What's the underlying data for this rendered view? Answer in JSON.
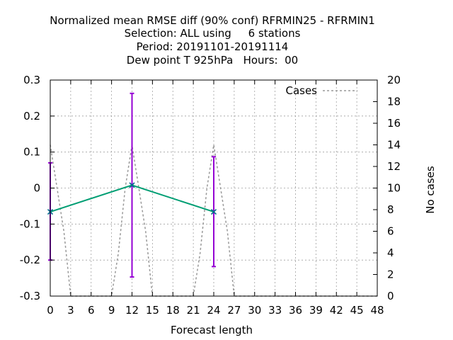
{
  "chart_data": {
    "type": "line",
    "title_lines": [
      "Normalized mean RMSE diff (90% conf) RFRMIN25 - RFRMIN1",
      "Selection: ALL using     6 stations",
      "Period: 20191101-20191114",
      "Dew point T 925hPa   Hours:  00"
    ],
    "xlabel": "Forecast length",
    "ylabel": "",
    "y2label": "No cases",
    "xlim": [
      0,
      48
    ],
    "ylim": [
      -0.3,
      0.3
    ],
    "y2lim": [
      0,
      20
    ],
    "x_ticks": [
      "0",
      "3",
      "6",
      "9",
      "12",
      "15",
      "18",
      "21",
      "24",
      "27",
      "30",
      "33",
      "36",
      "39",
      "42",
      "45",
      "48"
    ],
    "y_ticks": [
      "-0.3",
      "-0.2",
      "-0.1",
      "0",
      "0.1",
      "0.2",
      "0.3"
    ],
    "y2_ticks": [
      "0",
      "2",
      "4",
      "6",
      "8",
      "10",
      "12",
      "14",
      "16",
      "18",
      "20"
    ],
    "grid": true,
    "legend_position": "top-right",
    "series": [
      {
        "name": "",
        "color": "#009e73",
        "x": [
          0,
          12,
          24
        ],
        "y": [
          -0.066,
          0.008,
          -0.066
        ],
        "err_low": [
          -0.2,
          -0.247,
          -0.218
        ],
        "err_high": [
          0.07,
          0.263,
          0.087
        ],
        "err_color": "#9400d3"
      },
      {
        "name": "Cases",
        "color": "#999999",
        "axis": "y2",
        "dashed": true,
        "x": [
          0,
          1,
          2,
          3,
          9,
          10,
          11,
          12,
          13,
          14,
          15,
          21,
          22,
          23,
          24,
          25,
          26,
          27,
          48
        ],
        "y": [
          14,
          10,
          6,
          0,
          0,
          4,
          10,
          14,
          10,
          6,
          0,
          0,
          4,
          10,
          14,
          10,
          6,
          0,
          0
        ]
      }
    ]
  }
}
